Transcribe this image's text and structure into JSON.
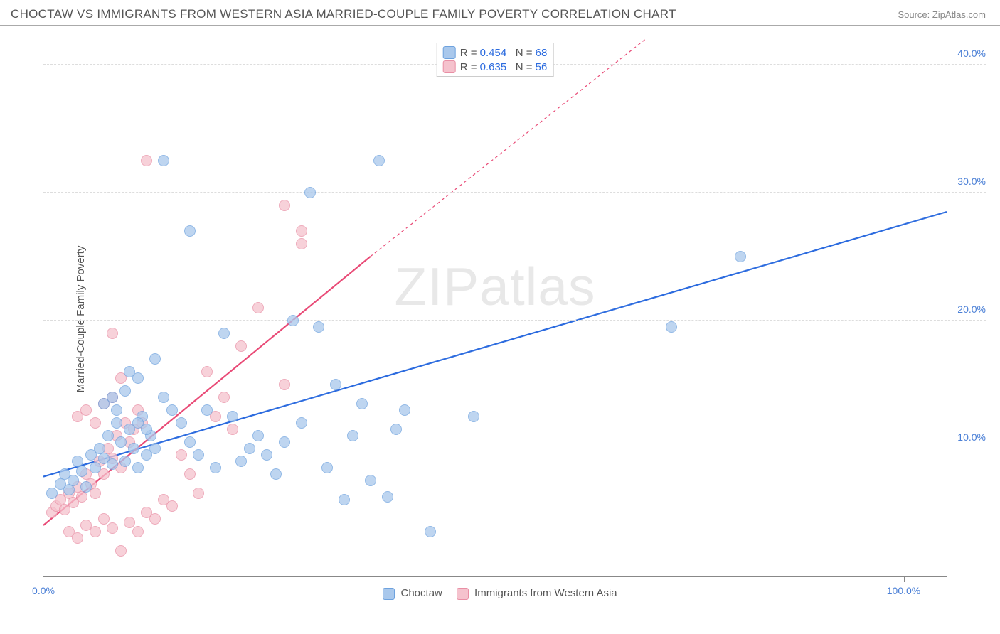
{
  "header": {
    "title": "CHOCTAW VS IMMIGRANTS FROM WESTERN ASIA MARRIED-COUPLE FAMILY POVERTY CORRELATION CHART",
    "source_label": "Source: ",
    "source_value": "ZipAtlas.com"
  },
  "ylabel": "Married-Couple Family Poverty",
  "watermark": "ZIPatlas",
  "axes": {
    "xmin": 0,
    "xmax": 105,
    "ymin": 0,
    "ymax": 42,
    "xticks": [
      0,
      50,
      100
    ],
    "xtick_labels": [
      "0.0%",
      "",
      "100.0%"
    ],
    "yticks": [
      10,
      20,
      30,
      40
    ],
    "ytick_labels": [
      "10.0%",
      "20.0%",
      "30.0%",
      "40.0%"
    ]
  },
  "colors": {
    "series1_fill": "#a9c8ec",
    "series1_stroke": "#6ea2de",
    "series1_line": "#2d6cdf",
    "series2_fill": "#f5c2cd",
    "series2_stroke": "#e98fa5",
    "series2_line": "#e94b77",
    "grid": "#dddddd",
    "axis": "#888888",
    "tick_text": "#4a7fd6",
    "text": "#555555"
  },
  "marker": {
    "radius": 8,
    "opacity": 0.75
  },
  "legend_top": {
    "rows": [
      {
        "swatch": "series1",
        "r_label": "R = ",
        "r_val": "0.454",
        "n_label": "N = ",
        "n_val": "68"
      },
      {
        "swatch": "series2",
        "r_label": "R = ",
        "r_val": "0.635",
        "n_label": "N = ",
        "n_val": "56"
      }
    ]
  },
  "legend_bottom": {
    "items": [
      {
        "swatch": "series1",
        "label": "Choctaw"
      },
      {
        "swatch": "series2",
        "label": "Immigrants from Western Asia"
      }
    ]
  },
  "trend_lines": {
    "series1": {
      "x1": 0,
      "y1": 7.8,
      "x2": 105,
      "y2": 28.5
    },
    "series2": {
      "solid": {
        "x1": 0,
        "y1": 4.0,
        "x2": 38,
        "y2": 25.0
      },
      "dashed": {
        "x1": 38,
        "y1": 25.0,
        "x2": 70,
        "y2": 42.0
      }
    }
  },
  "series1_points": [
    [
      1,
      6.5
    ],
    [
      2,
      7.2
    ],
    [
      2.5,
      8
    ],
    [
      3,
      6.8
    ],
    [
      3.5,
      7.5
    ],
    [
      4,
      9
    ],
    [
      4.5,
      8.2
    ],
    [
      5,
      7
    ],
    [
      5.5,
      9.5
    ],
    [
      6,
      8.5
    ],
    [
      6.5,
      10
    ],
    [
      7,
      9.2
    ],
    [
      7.5,
      11
    ],
    [
      8,
      8.8
    ],
    [
      8.5,
      12
    ],
    [
      9,
      10.5
    ],
    [
      9.5,
      9
    ],
    [
      10,
      11.5
    ],
    [
      10.5,
      10
    ],
    [
      11,
      8.5
    ],
    [
      11.5,
      12.5
    ],
    [
      12,
      9.5
    ],
    [
      12.5,
      11
    ],
    [
      13,
      10
    ],
    [
      7,
      13.5
    ],
    [
      8,
      14
    ],
    [
      10,
      16
    ],
    [
      11,
      15.5
    ],
    [
      13,
      17
    ],
    [
      14,
      32.5
    ],
    [
      15,
      13
    ],
    [
      16,
      12
    ],
    [
      17,
      10.5
    ],
    [
      18,
      9.5
    ],
    [
      19,
      13
    ],
    [
      20,
      8.5
    ],
    [
      21,
      19
    ],
    [
      22,
      12.5
    ],
    [
      23,
      9
    ],
    [
      24,
      10
    ],
    [
      25,
      11
    ],
    [
      26,
      9.5
    ],
    [
      27,
      8
    ],
    [
      28,
      10.5
    ],
    [
      29,
      20
    ],
    [
      30,
      12
    ],
    [
      31,
      30
    ],
    [
      32,
      19.5
    ],
    [
      33,
      8.5
    ],
    [
      34,
      15
    ],
    [
      35,
      6
    ],
    [
      36,
      11
    ],
    [
      37,
      13.5
    ],
    [
      38,
      7.5
    ],
    [
      39,
      32.5
    ],
    [
      40,
      6.2
    ],
    [
      41,
      11.5
    ],
    [
      42,
      13
    ],
    [
      45,
      3.5
    ],
    [
      50,
      12.5
    ],
    [
      17,
      27
    ],
    [
      81,
      25
    ],
    [
      73,
      19.5
    ],
    [
      8.5,
      13
    ],
    [
      9.5,
      14.5
    ],
    [
      11,
      12
    ],
    [
      12,
      11.5
    ],
    [
      14,
      14
    ]
  ],
  "series2_points": [
    [
      1,
      5
    ],
    [
      1.5,
      5.5
    ],
    [
      2,
      6
    ],
    [
      2.5,
      5.2
    ],
    [
      3,
      6.5
    ],
    [
      3.5,
      5.8
    ],
    [
      4,
      7
    ],
    [
      4.5,
      6.2
    ],
    [
      5,
      8
    ],
    [
      5.5,
      7.2
    ],
    [
      6,
      6.5
    ],
    [
      6.5,
      9
    ],
    [
      7,
      8
    ],
    [
      7.5,
      10
    ],
    [
      8,
      9.2
    ],
    [
      8.5,
      11
    ],
    [
      9,
      8.5
    ],
    [
      9.5,
      12
    ],
    [
      10,
      10.5
    ],
    [
      10.5,
      11.5
    ],
    [
      11,
      13
    ],
    [
      11.5,
      12
    ],
    [
      12,
      32.5
    ],
    [
      4,
      12.5
    ],
    [
      5,
      13
    ],
    [
      6,
      12
    ],
    [
      7,
      13.5
    ],
    [
      8,
      14
    ],
    [
      9,
      15.5
    ],
    [
      3,
      3.5
    ],
    [
      4,
      3
    ],
    [
      5,
      4
    ],
    [
      6,
      3.5
    ],
    [
      7,
      4.5
    ],
    [
      8,
      3.8
    ],
    [
      9,
      2
    ],
    [
      10,
      4.2
    ],
    [
      11,
      3.5
    ],
    [
      12,
      5
    ],
    [
      13,
      4.5
    ],
    [
      14,
      6
    ],
    [
      15,
      5.5
    ],
    [
      16,
      9.5
    ],
    [
      17,
      8
    ],
    [
      18,
      6.5
    ],
    [
      19,
      16
    ],
    [
      20,
      12.5
    ],
    [
      21,
      14
    ],
    [
      22,
      11.5
    ],
    [
      8,
      19
    ],
    [
      23,
      18
    ],
    [
      25,
      21
    ],
    [
      28,
      15
    ],
    [
      28,
      29
    ],
    [
      30,
      26
    ],
    [
      30,
      27
    ]
  ]
}
